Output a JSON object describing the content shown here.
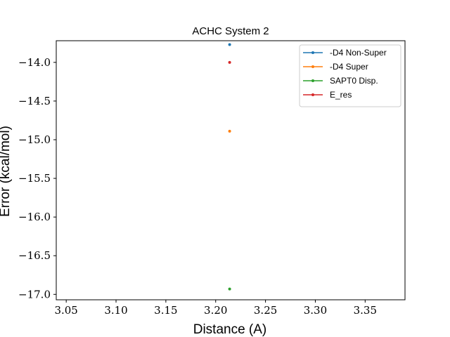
{
  "chart_data": {
    "type": "line",
    "title": "ACHC System 2",
    "xlabel": "Distance (A)",
    "ylabel": "Error (kcal/mol)",
    "xlim": [
      3.04,
      3.39
    ],
    "ylim": [
      -17.07,
      -13.72
    ],
    "xticks": [
      3.05,
      3.1,
      3.15,
      3.2,
      3.25,
      3.3,
      3.35
    ],
    "xtick_labels": [
      "3.05",
      "3.10",
      "3.15",
      "3.20",
      "3.25",
      "3.30",
      "3.35"
    ],
    "yticks": [
      -14.0,
      -14.5,
      -15.0,
      -15.5,
      -16.0,
      -16.5,
      -17.0
    ],
    "ytick_labels": [
      "−14.0",
      "−14.5",
      "−15.0",
      "−15.5",
      "−16.0",
      "−16.5",
      "−17.0"
    ],
    "grid": false,
    "legend_position": "top-right",
    "series": [
      {
        "name": "-D4 Non-Super",
        "color": "#1f77b4",
        "x": [
          3.214
        ],
        "y": [
          -13.77
        ]
      },
      {
        "name": "-D4 Super",
        "color": "#ff7f0e",
        "x": [
          3.214
        ],
        "y": [
          -14.89
        ]
      },
      {
        "name": "SAPT0 Disp.",
        "color": "#2ca02c",
        "x": [
          3.214
        ],
        "y": [
          -16.93
        ]
      },
      {
        "name": "E_res",
        "color": "#d62728",
        "x": [
          3.214
        ],
        "y": [
          -14.0
        ]
      }
    ]
  }
}
